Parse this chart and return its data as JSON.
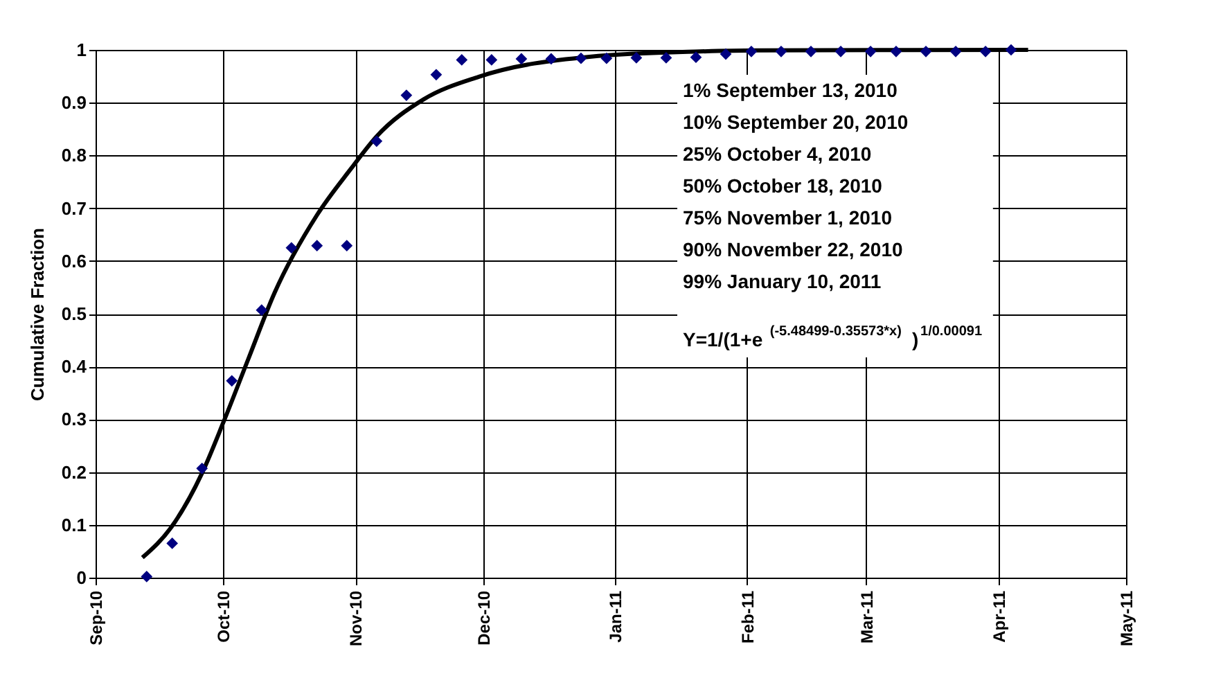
{
  "chart_data": {
    "type": "scatter",
    "ylabel": "Cumulative Fraction",
    "xlim": [
      "2010-09-01",
      "2011-05-01"
    ],
    "xticks": [
      {
        "value": "2010-09-01",
        "label": "Sep-10"
      },
      {
        "value": "2010-10-01",
        "label": "Oct-10"
      },
      {
        "value": "2010-11-01",
        "label": "Nov-10"
      },
      {
        "value": "2010-12-01",
        "label": "Dec-10"
      },
      {
        "value": "2011-01-01",
        "label": "Jan-11"
      },
      {
        "value": "2011-02-01",
        "label": "Feb-11"
      },
      {
        "value": "2011-03-01",
        "label": "Mar-11"
      },
      {
        "value": "2011-04-01",
        "label": "Apr-11"
      },
      {
        "value": "2011-05-01",
        "label": "May-11"
      }
    ],
    "ylim": [
      0,
      1
    ],
    "yticks": [
      0,
      0.1,
      0.2,
      0.3,
      0.4,
      0.5,
      0.6,
      0.7,
      0.8,
      0.9,
      1
    ],
    "grid": true,
    "series": [
      {
        "type": "scatter",
        "marker": "diamond",
        "color": "#000080",
        "x": [
          "2010-09-13",
          "2010-09-19",
          "2010-09-26",
          "2010-10-03",
          "2010-10-10",
          "2010-10-17",
          "2010-10-23",
          "2010-10-30",
          "2010-11-06",
          "2010-11-13",
          "2010-11-20",
          "2010-11-26",
          "2010-12-03",
          "2010-12-10",
          "2010-12-17",
          "2010-12-24",
          "2010-12-30",
          "2011-01-06",
          "2011-01-13",
          "2011-01-20",
          "2011-01-27",
          "2011-02-02",
          "2011-02-09",
          "2011-02-16",
          "2011-02-23",
          "2011-03-02",
          "2011-03-08",
          "2011-03-15",
          "2011-03-22",
          "2011-03-29",
          "2011-04-04"
        ],
        "values": [
          0.002,
          0.065,
          0.207,
          0.373,
          0.507,
          0.625,
          0.629,
          0.629,
          0.827,
          0.914,
          0.953,
          0.981,
          0.981,
          0.983,
          0.983,
          0.984,
          0.984,
          0.985,
          0.985,
          0.986,
          0.992,
          0.997,
          0.997,
          0.997,
          0.997,
          0.997,
          0.997,
          0.997,
          0.997,
          0.997,
          1.0
        ]
      },
      {
        "type": "line",
        "marker": "none",
        "line_style": "solid",
        "color": "#000000",
        "x": [
          "2010-09-12",
          "2010-09-19",
          "2010-09-26",
          "2010-10-01",
          "2010-10-07",
          "2010-10-13",
          "2010-10-23",
          "2010-10-31",
          "2010-11-06",
          "2010-11-17",
          "2010-11-30",
          "2010-12-26",
          "2011-01-21",
          "2011-02-03",
          "2011-04-08"
        ],
        "values": [
          0.038,
          0.098,
          0.198,
          0.294,
          0.417,
          0.539,
          0.687,
          0.775,
          0.836,
          0.906,
          0.949,
          0.987,
          0.997,
          0.999,
          1.0
        ]
      }
    ],
    "annotations": [
      "1% September 13, 2010",
      "10% September 20, 2010",
      "25% October 4, 2010",
      "50% October 18, 2010",
      "75% November 1, 2010",
      "90% November 22, 2010",
      "99% January 10, 2011",
      "Y=1/(1+e$^{(-5.48499-0.35573*x)}$)$^{1/0.00091}$"
    ]
  }
}
